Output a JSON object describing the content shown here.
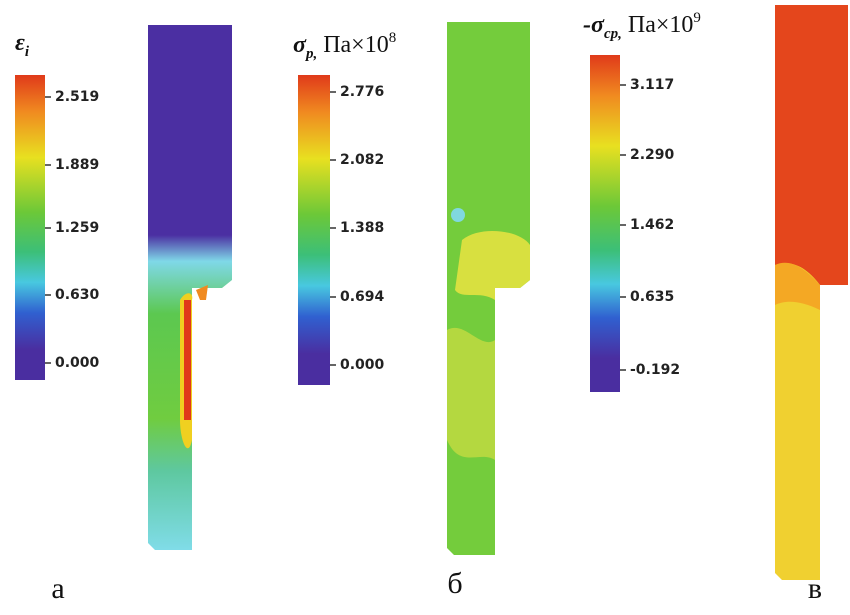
{
  "panels": [
    {
      "symbol": "ε",
      "subscript": "i",
      "unit": "",
      "exponent": "",
      "ticks": [
        "2.519",
        "1.889",
        "1.259",
        "0.630",
        "0.000"
      ],
      "label": "а"
    },
    {
      "symbol": "σ",
      "subscript": "р,",
      "unit": " Па×10",
      "exponent": "8",
      "ticks": [
        "2.776",
        "2.082",
        "1.388",
        "0.694",
        "0.000"
      ],
      "label": "б"
    },
    {
      "symbol": "-σ",
      "subscript": "ср,",
      "unit": " Па×10",
      "exponent": "9",
      "ticks": [
        "3.117",
        "2.290",
        "1.462",
        "0.635",
        "-0.192"
      ],
      "label": "в"
    }
  ]
}
